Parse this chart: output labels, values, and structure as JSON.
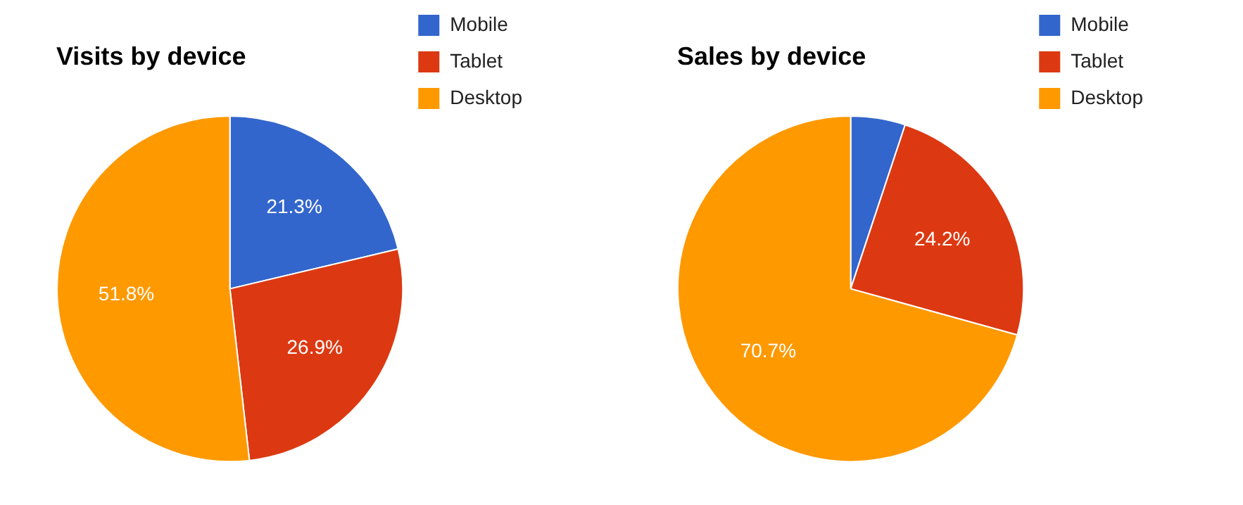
{
  "chart_data": [
    {
      "type": "pie",
      "title": "Visits by device",
      "categories": [
        "Mobile",
        "Tablet",
        "Desktop"
      ],
      "values": [
        21.3,
        26.9,
        51.8
      ],
      "colors": [
        "#3366cc",
        "#dc3912",
        "#ff9900"
      ],
      "value_labels": [
        "21.3%",
        "26.9%",
        "51.8%"
      ],
      "legend": "top right"
    },
    {
      "type": "pie",
      "title": "Sales by device",
      "categories": [
        "Mobile",
        "Tablet",
        "Desktop"
      ],
      "values": [
        5.1,
        24.2,
        70.7
      ],
      "colors": [
        "#3366cc",
        "#dc3912",
        "#ff9900"
      ],
      "value_labels": [
        null,
        "24.2%",
        "70.7%"
      ],
      "legend": "top right"
    }
  ]
}
